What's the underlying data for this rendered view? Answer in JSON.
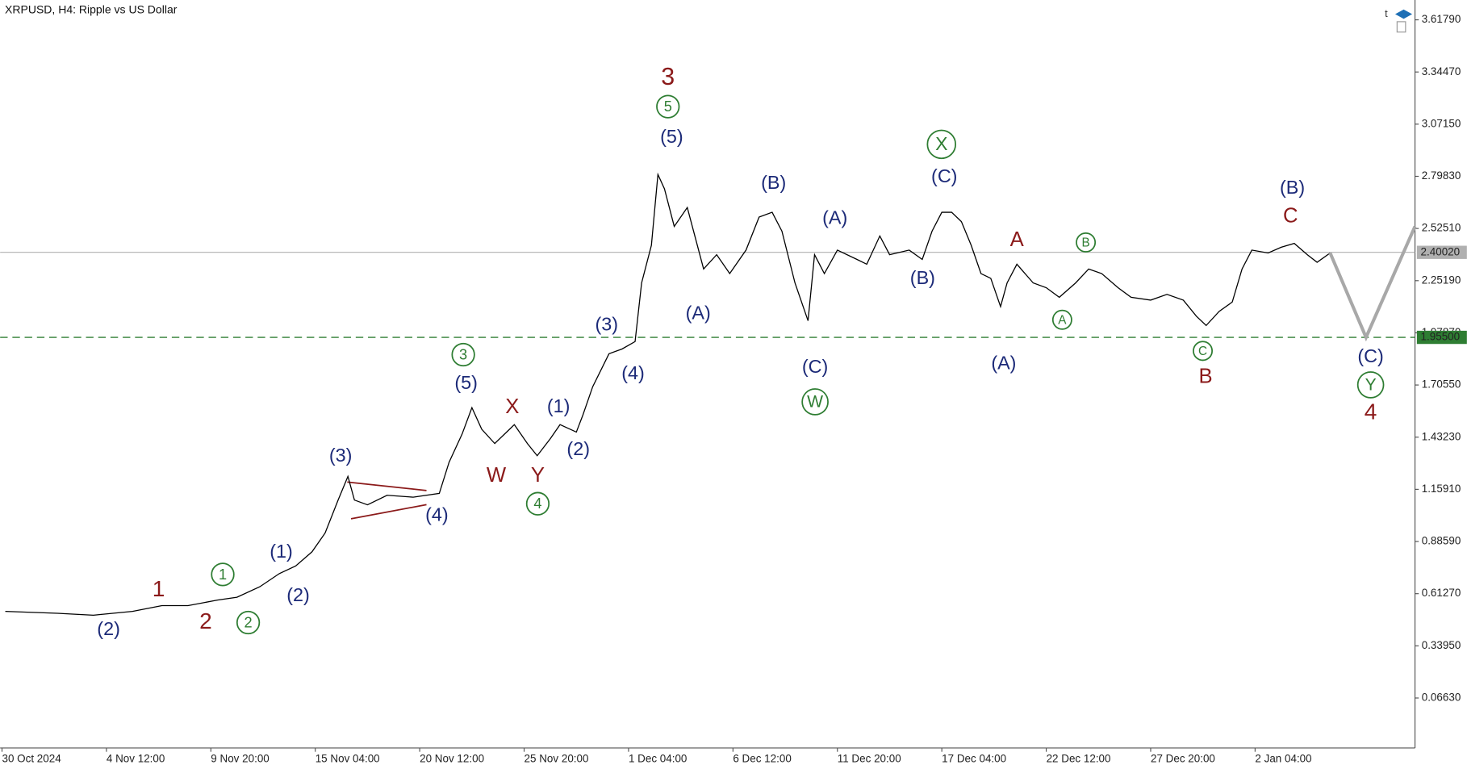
{
  "chart_data": {
    "type": "line",
    "title": "XRPUSD, H4:  Ripple vs US Dollar",
    "xlim": [
      0,
      433
    ],
    "ylim": [
      -0.1956,
      3.7217
    ],
    "xticks": [
      {
        "value": 0,
        "label": "30 Oct 2024"
      },
      {
        "value": 32,
        "label": "4 Nov 12:00"
      },
      {
        "value": 64,
        "label": "9 Nov 20:00"
      },
      {
        "value": 96,
        "label": "15 Nov 04:00"
      },
      {
        "value": 128,
        "label": "20 Nov 12:00"
      },
      {
        "value": 160,
        "label": "25 Nov 20:00"
      },
      {
        "value": 192,
        "label": "1 Dec 04:00"
      },
      {
        "value": 224,
        "label": "6 Dec 12:00"
      },
      {
        "value": 256,
        "label": "11 Dec 20:00"
      },
      {
        "value": 288,
        "label": "17 Dec 04:00"
      },
      {
        "value": 320,
        "label": "22 Dec 12:00"
      },
      {
        "value": 352,
        "label": "27 Dec 20:00"
      },
      {
        "value": 384,
        "label": "2 Jan 04:00"
      }
    ],
    "yticks": [
      {
        "value": 3.6179,
        "label": "3.61790"
      },
      {
        "value": 3.3447,
        "label": "3.34470"
      },
      {
        "value": 3.0715,
        "label": "3.07150"
      },
      {
        "value": 2.7983,
        "label": "2.79830"
      },
      {
        "value": 2.5251,
        "label": "2.52510"
      },
      {
        "value": 2.2519,
        "label": "2.25190"
      },
      {
        "value": 1.9787,
        "label": "1.97870"
      },
      {
        "value": 1.7055,
        "label": "1.70550"
      },
      {
        "value": 1.4323,
        "label": "1.43230"
      },
      {
        "value": 1.1591,
        "label": "1.15910"
      },
      {
        "value": 0.8859,
        "label": "0.88590"
      },
      {
        "value": 0.6127,
        "label": "0.61270"
      },
      {
        "value": 0.3395,
        "label": "0.33950"
      },
      {
        "value": 0.0663,
        "label": "0.06630"
      }
    ],
    "series": [
      {
        "color": "#000000",
        "x": [
          1,
          17,
          28,
          40,
          49,
          57,
          66,
          72,
          79,
          85,
          90,
          95,
          99,
          103,
          106,
          108,
          112,
          118,
          126,
          134,
          137,
          141,
          144,
          147,
          151,
          157,
          161,
          164,
          168,
          171,
          176,
          178,
          181,
          186,
          190,
          194,
          196,
          199,
          201,
          203,
          206,
          210,
          215,
          219,
          223,
          228,
          232,
          236,
          239,
          243,
          247,
          249,
          252,
          256,
          262,
          265,
          269,
          272,
          278,
          282,
          285,
          288,
          291,
          294,
          297,
          300,
          303,
          306,
          308,
          311,
          316,
          320,
          324,
          329,
          333,
          337,
          342,
          346,
          352,
          357,
          362,
          366,
          369,
          373,
          377,
          380,
          383,
          388,
          392,
          396,
          400,
          403,
          407
        ],
        "values": [
          0.52,
          0.51,
          0.5,
          0.52,
          0.55,
          0.55,
          0.579,
          0.594,
          0.649,
          0.718,
          0.758,
          0.832,
          0.93,
          1.103,
          1.227,
          1.103,
          1.078,
          1.128,
          1.118,
          1.138,
          1.301,
          1.449,
          1.587,
          1.474,
          1.399,
          1.498,
          1.399,
          1.335,
          1.424,
          1.498,
          1.459,
          1.548,
          1.696,
          1.869,
          1.894,
          1.933,
          2.24,
          2.437,
          2.808,
          2.733,
          2.536,
          2.635,
          2.313,
          2.388,
          2.289,
          2.412,
          2.585,
          2.61,
          2.511,
          2.24,
          2.042,
          2.388,
          2.289,
          2.412,
          2.363,
          2.338,
          2.486,
          2.388,
          2.412,
          2.363,
          2.511,
          2.61,
          2.61,
          2.561,
          2.437,
          2.289,
          2.264,
          2.116,
          2.24,
          2.338,
          2.24,
          2.215,
          2.165,
          2.24,
          2.313,
          2.289,
          2.215,
          2.165,
          2.15,
          2.18,
          2.15,
          2.066,
          2.017,
          2.091,
          2.14,
          2.313,
          2.412,
          2.397,
          2.427,
          2.447,
          2.388,
          2.348,
          2.397
        ]
      }
    ],
    "projection": {
      "color": "#a8a8a8",
      "x": [
        407,
        418,
        433
      ],
      "values": [
        2.397,
        1.955,
        2.536
      ]
    },
    "price_lines": [
      {
        "value": 2.4002,
        "label": "2.40020",
        "color": "#b0b0b0",
        "style": "solid"
      },
      {
        "value": 1.955,
        "label": "1.95500",
        "color": "#2e7d32",
        "style": "dashed"
      }
    ],
    "annotations": [
      {
        "text": "(2)",
        "color": "#1c2a78"
      },
      {
        "text": "1",
        "color": "#8b1a1a"
      },
      {
        "text": "2",
        "color": "#8b1a1a"
      },
      {
        "text": "1",
        "color": "#2e7d32",
        "circled": true
      },
      {
        "text": "2",
        "color": "#2e7d32",
        "circled": true
      },
      {
        "text": "(1)",
        "color": "#1c2a78"
      },
      {
        "text": "(2)",
        "color": "#1c2a78"
      },
      {
        "text": "(3)",
        "color": "#1c2a78"
      },
      {
        "text": "(4)",
        "color": "#1c2a78"
      },
      {
        "text": "3",
        "color": "#2e7d32",
        "circled": true
      },
      {
        "text": "(5)",
        "color": "#1c2a78"
      },
      {
        "text": "X",
        "color": "#8b1a1a"
      },
      {
        "text": "W",
        "color": "#8b1a1a"
      },
      {
        "text": "Y",
        "color": "#8b1a1a"
      },
      {
        "text": "4",
        "color": "#2e7d32",
        "circled": true
      },
      {
        "text": "(1)",
        "color": "#1c2a78"
      },
      {
        "text": "(2)",
        "color": "#1c2a78"
      },
      {
        "text": "(3)",
        "color": "#1c2a78"
      },
      {
        "text": "(4)",
        "color": "#1c2a78"
      },
      {
        "text": "3",
        "color": "#8b1a1a"
      },
      {
        "text": "5",
        "color": "#2e7d32",
        "circled": true
      },
      {
        "text": "(5)",
        "color": "#1c2a78"
      },
      {
        "text": "(A)",
        "color": "#1c2a78"
      },
      {
        "text": "(B)",
        "color": "#1c2a78"
      },
      {
        "text": "(C)",
        "color": "#1c2a78"
      },
      {
        "text": "W",
        "color": "#2e7d32",
        "circled": true
      },
      {
        "text": "(A)",
        "color": "#1c2a78"
      },
      {
        "text": "(B)",
        "color": "#1c2a78"
      },
      {
        "text": "X",
        "color": "#2e7d32",
        "circled": true
      },
      {
        "text": "(C)",
        "color": "#1c2a78"
      },
      {
        "text": "A",
        "color": "#8b1a1a"
      },
      {
        "text": "(A)",
        "color": "#1c2a78"
      },
      {
        "text": "B",
        "color": "#2e7d32",
        "circled": true
      },
      {
        "text": "A",
        "color": "#2e7d32",
        "circled": true
      },
      {
        "text": "C",
        "color": "#2e7d32",
        "circled": true
      },
      {
        "text": "B",
        "color": "#8b1a1a"
      },
      {
        "text": "(B)",
        "color": "#1c2a78"
      },
      {
        "text": "C",
        "color": "#8b1a1a"
      },
      {
        "text": "(C)",
        "color": "#1c2a78"
      },
      {
        "text": "Y",
        "color": "#2e7d32",
        "circled": true
      },
      {
        "text": "4",
        "color": "#8b1a1a"
      }
    ]
  }
}
